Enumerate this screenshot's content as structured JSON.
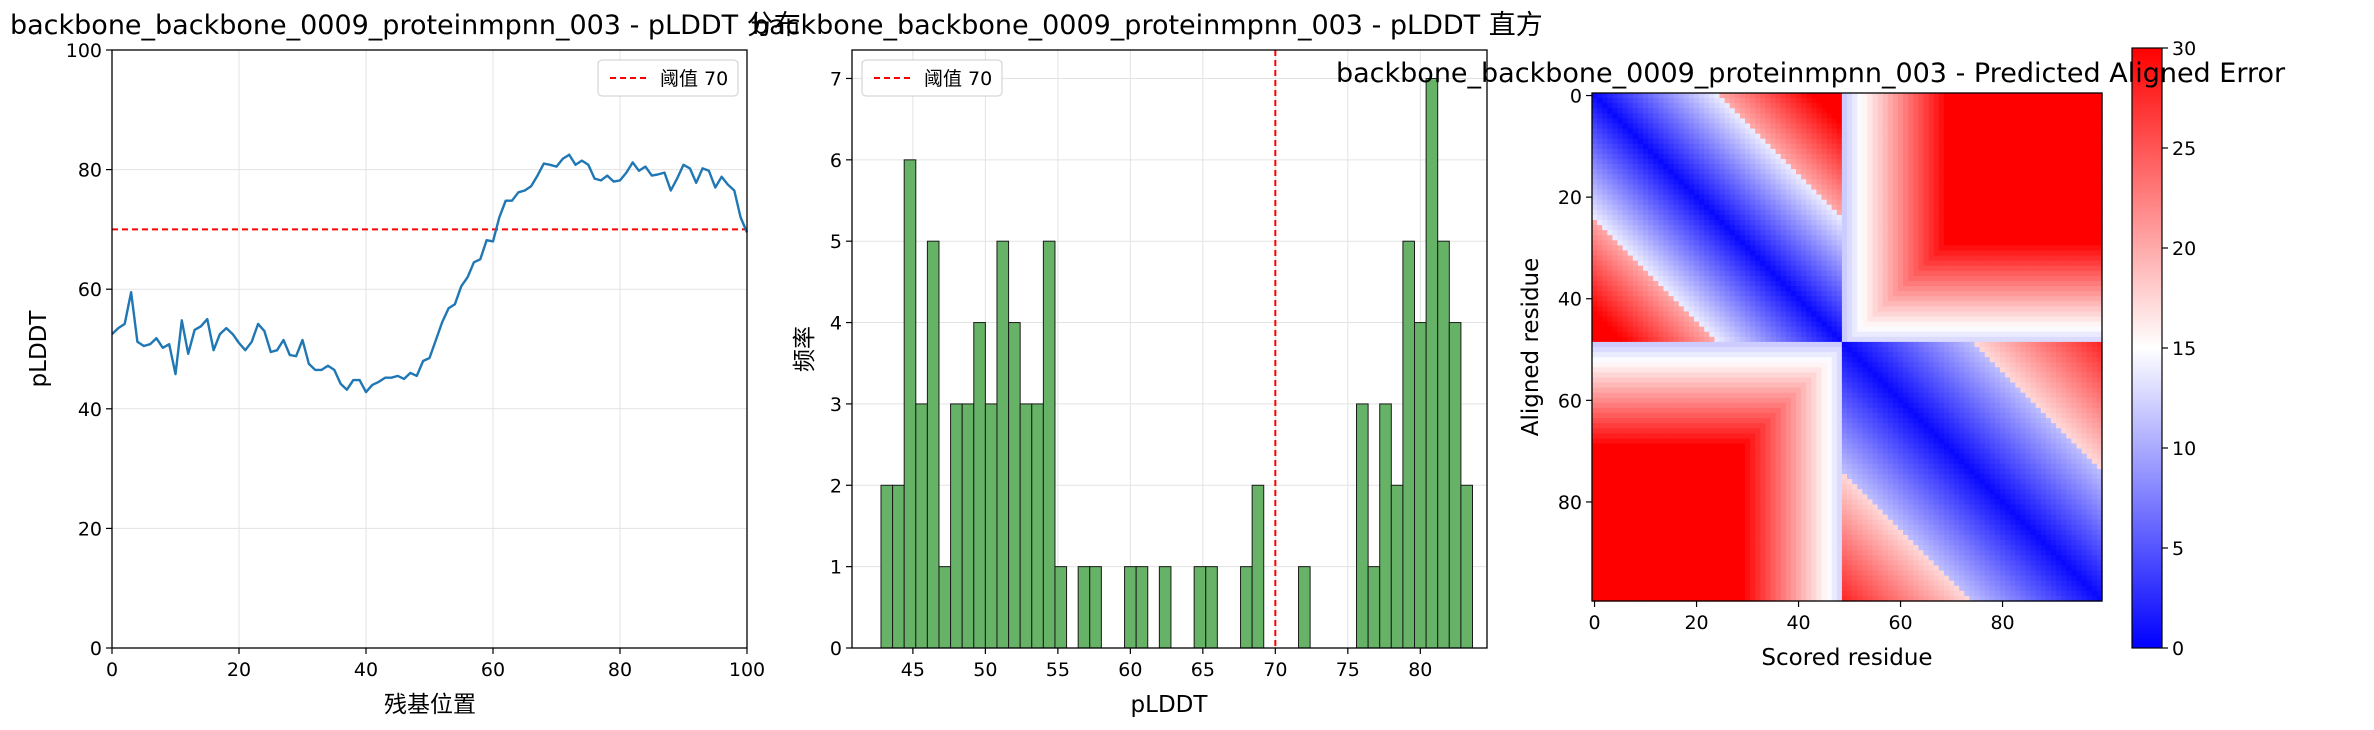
{
  "chart_data": [
    {
      "type": "line",
      "title": "backbone_backbone_0009_proteinmpnn_003 - pLDDT 分布",
      "xlabel": "残基位置",
      "ylabel": "pLDDT",
      "xlim": [
        0,
        100
      ],
      "ylim": [
        0,
        100
      ],
      "xticks": [
        0,
        20,
        40,
        60,
        80,
        100
      ],
      "yticks": [
        0,
        20,
        40,
        60,
        80,
        100
      ],
      "grid": true,
      "legend": {
        "placement": "top-right",
        "entries": [
          "阈值 70"
        ]
      },
      "threshold": {
        "orientation": "horizontal",
        "value": 70,
        "label": "阈值 70",
        "color": "#ff0000"
      },
      "series": [
        {
          "name": "pLDDT",
          "color": "#1f77b4",
          "x": [
            0,
            1,
            2,
            3,
            4,
            5,
            6,
            7,
            8,
            9,
            10,
            11,
            12,
            13,
            14,
            15,
            16,
            17,
            18,
            19,
            20,
            21,
            22,
            23,
            24,
            25,
            26,
            27,
            28,
            29,
            30,
            31,
            32,
            33,
            34,
            35,
            36,
            37,
            38,
            39,
            40,
            41,
            42,
            43,
            44,
            45,
            46,
            47,
            48,
            49,
            50,
            51,
            52,
            53,
            54,
            55,
            56,
            57,
            58,
            59,
            60,
            61,
            62,
            63,
            64,
            65,
            66,
            67,
            68,
            69,
            70,
            71,
            72,
            73,
            74,
            75,
            76,
            77,
            78,
            79,
            80,
            81,
            82,
            83,
            84,
            85,
            86,
            87,
            88,
            89,
            90,
            91,
            92,
            93,
            94,
            95,
            96,
            97,
            98,
            99,
            100
          ],
          "values": [
            52.5,
            53.5,
            54.2,
            59.5,
            51.2,
            50.5,
            50.8,
            51.8,
            50.2,
            50.8,
            45.8,
            54.8,
            49.2,
            53.2,
            53.8,
            55.0,
            49.8,
            52.5,
            53.5,
            52.5,
            51.0,
            49.8,
            51.2,
            54.2,
            53.0,
            49.5,
            49.8,
            51.5,
            49.0,
            48.8,
            51.5,
            47.5,
            46.5,
            46.5,
            47.2,
            46.5,
            44.2,
            43.2,
            44.8,
            44.8,
            42.8,
            44.0,
            44.5,
            45.2,
            45.2,
            45.5,
            45.0,
            46.0,
            45.5,
            48.0,
            48.5,
            51.5,
            54.5,
            56.8,
            57.5,
            60.5,
            62.0,
            64.5,
            65.0,
            68.2,
            68.0,
            72.0,
            74.8,
            74.8,
            76.2,
            76.5,
            77.2,
            79.0,
            81.0,
            80.8,
            80.5,
            81.8,
            82.5,
            80.8,
            81.5,
            80.8,
            78.5,
            78.2,
            79.0,
            78.0,
            78.2,
            79.5,
            81.2,
            79.8,
            80.5,
            79.0,
            79.2,
            79.5,
            76.5,
            78.5,
            80.8,
            80.2,
            77.8,
            80.2,
            79.8,
            77.0,
            78.8,
            77.5,
            76.5,
            72.0,
            69.5
          ]
        }
      ]
    },
    {
      "type": "histogram",
      "title": "backbone_backbone_0009_proteinmpnn_003 - pLDDT 直方",
      "xlabel": "pLDDT",
      "ylabel": "频率",
      "xlim": [
        40.8,
        84.6
      ],
      "ylim": [
        0,
        7.35
      ],
      "xticks": [
        45,
        50,
        55,
        60,
        65,
        70,
        75,
        80
      ],
      "yticks": [
        0,
        1,
        2,
        3,
        4,
        5,
        6,
        7
      ],
      "grid": true,
      "legend": {
        "placement": "top-left",
        "entries": [
          "阈值 70"
        ]
      },
      "threshold": {
        "orientation": "vertical",
        "value": 70,
        "label": "阈值 70",
        "color": "#ff0000"
      },
      "bar_color": "#66b266",
      "bin_start": 42.8,
      "bin_width": 0.8,
      "counts": [
        2,
        2,
        6,
        3,
        5,
        1,
        3,
        3,
        4,
        3,
        5,
        4,
        3,
        3,
        5,
        1,
        0,
        1,
        1,
        0,
        0,
        1,
        1,
        0,
        1,
        0,
        0,
        1,
        1,
        0,
        0,
        1,
        2,
        0,
        0,
        0,
        1,
        0,
        0,
        0,
        0,
        3,
        1,
        3,
        2,
        5,
        4,
        7,
        5,
        4,
        2
      ]
    },
    {
      "type": "heatmap",
      "title": "backbone_backbone_0009_proteinmpnn_003 - Predicted Aligned Error",
      "xlabel": "Scored residue",
      "ylabel": "Aligned residue",
      "size": 100,
      "xticks": [
        0,
        20,
        40,
        60,
        80
      ],
      "yticks": [
        0,
        20,
        40,
        60,
        80
      ],
      "colormap": "bwr",
      "value_range": [
        0,
        30
      ],
      "colorbar_ticks": [
        0,
        5,
        10,
        15,
        20,
        25,
        30
      ],
      "description_of_pattern": {
        "domain_boundary_residue": 49,
        "low_error_blocks": [
          [
            0,
            49
          ],
          [
            49,
            100
          ]
        ],
        "diagonal_error": 0.5,
        "cross_block_error": 30
      }
    }
  ]
}
